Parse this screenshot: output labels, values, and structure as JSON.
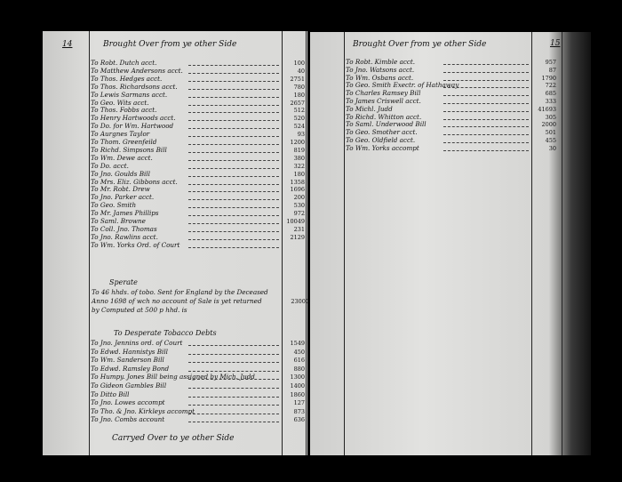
{
  "left_page": {
    "page_number": "14",
    "heading": "Brought Over from ye other Side",
    "entries": [
      {
        "text": "To Robt. Dutch acct.",
        "amount": "100"
      },
      {
        "text": "To Matthew Andersons acct.",
        "amount": "40"
      },
      {
        "text": "To Thos. Hedges acct.",
        "amount": "2751"
      },
      {
        "text": "To Thos. Richardsons acct.",
        "amount": "780"
      },
      {
        "text": "To Lewis Sarmans acct.",
        "amount": "180"
      },
      {
        "text": "To Geo. Wits acct.",
        "amount": "2657"
      },
      {
        "text": "To Thos. Fobbs acct.",
        "amount": "512"
      },
      {
        "text": "To Henry Hartwoods acct.",
        "amount": "520"
      },
      {
        "text": "To Do. for Wm. Hartwood",
        "amount": "524"
      },
      {
        "text": "To Aurgnes Taylor",
        "amount": "93"
      },
      {
        "text": "To Thom. Greenfeild",
        "amount": "1200"
      },
      {
        "text": "To Richd. Simpsons Bill",
        "amount": "819"
      },
      {
        "text": "To Wm. Dewe acct.",
        "amount": "380"
      },
      {
        "text": "To Do. acct.",
        "amount": "322"
      },
      {
        "text": "To Jno. Goulds Bill",
        "amount": "180"
      },
      {
        "text": "To Mrs. Eliz. Gibbons acct.",
        "amount": "1358"
      },
      {
        "text": "To Mr. Robt. Drew",
        "amount": "1696"
      },
      {
        "text": "To Jno. Parker acct.",
        "amount": "200"
      },
      {
        "text": "To Geo. Smith",
        "amount": "530"
      },
      {
        "text": "To Mr. James Phillips",
        "amount": "972"
      },
      {
        "text": "To Saml. Browne",
        "amount": "10049"
      },
      {
        "text": "To Coll. Jno. Thomas",
        "amount": "231"
      },
      {
        "text": "To Jno. Rawlins acct.",
        "amount": "2129"
      },
      {
        "text": "To Wm. Yorks Ord. of Court",
        "amount": ""
      }
    ],
    "sperate_heading": "Sperate",
    "sperate_text": [
      "To 46 hhds. of tobo. Sent for England by the Deceased",
      "Anno 1698 of wch no account of Sale is yet returned",
      "by Computed at 500 p hhd. is"
    ],
    "sperate_amount": "23000",
    "desperate_heading": "To Desperate Tobacco Debts",
    "desperate_entries": [
      {
        "text": "To Jno. Jennins ord. of Court",
        "amount": "1549"
      },
      {
        "text": "To Edwd. Hannistys Bill",
        "amount": "450"
      },
      {
        "text": "To Wm. Sanderson Bill",
        "amount": "616"
      },
      {
        "text": "To Edwd. Ramsley Bond",
        "amount": "880"
      },
      {
        "text": "To Humpy. Jones Bill being assigned by Mich. Judd",
        "amount": "1300"
      },
      {
        "text": "To Gideon Gambles Bill",
        "amount": "1400"
      },
      {
        "text": "To Ditto Bill",
        "amount": "1860"
      },
      {
        "text": "To Jno. Lowes accompt",
        "amount": "127"
      },
      {
        "text": "To Tho. & Jno. Kirkleys accompt",
        "amount": "873"
      },
      {
        "text": "To Jno. Combs account",
        "amount": "636"
      }
    ],
    "footer": "Carryed Over to ye other Side"
  },
  "right_page": {
    "page_number": "15",
    "heading": "Brought Over from ye other Side",
    "entries": [
      {
        "text": "To Robt. Kimble acct.",
        "amount": "957"
      },
      {
        "text": "To Jno. Watsons acct.",
        "amount": "87"
      },
      {
        "text": "To Wm. Osbans acct.",
        "amount": "1790"
      },
      {
        "text": "To Geo. Smith Exectr. of Hathaway",
        "amount": "722"
      },
      {
        "text": "To Charles Ramsey Bill",
        "amount": "685"
      },
      {
        "text": "To James Criswell acct.",
        "amount": "333"
      },
      {
        "text": "To Michl. Judd",
        "amount": "41693"
      },
      {
        "text": "To Richd. Whitton acct.",
        "amount": "305"
      },
      {
        "text": "To Saml. Underwood Bill",
        "amount": "2000"
      },
      {
        "text": "To Geo. Smother acct.",
        "amount": "501"
      },
      {
        "text": "To Geo. Oldfield acct.",
        "amount": "455"
      },
      {
        "text": "To Wm. Yorks accompt",
        "amount": "30"
      }
    ]
  }
}
